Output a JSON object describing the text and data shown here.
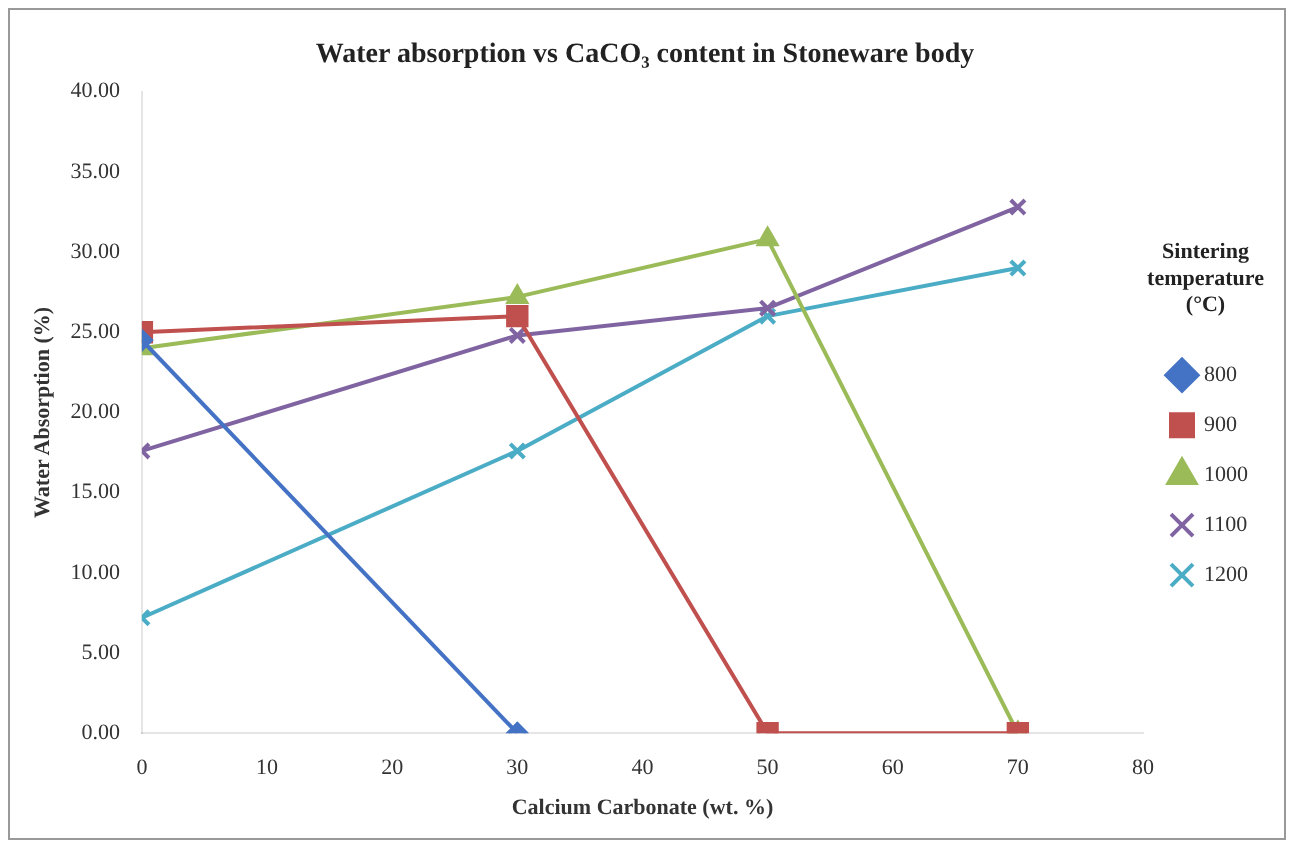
{
  "chart_data": {
    "type": "line",
    "title": "Water absorption vs CaCO₃ content in Stoneware body",
    "xlabel": "Calcium Carbonate (wt. %)",
    "ylabel": "Water Absorption (%)",
    "legend_title": "Sintering temperature (°C)",
    "legend": "right",
    "grid": false,
    "line_style": "solid",
    "x": [
      0,
      30,
      50,
      70
    ],
    "series": [
      {
        "name": "800",
        "color": "#4472c4",
        "marker": "diamond",
        "values": [
          24.5,
          0,
          null,
          null
        ]
      },
      {
        "name": "900",
        "color": "#c0504d",
        "marker": "square",
        "values": [
          25,
          26,
          0,
          0
        ]
      },
      {
        "name": "1000",
        "color": "#9bbb59",
        "marker": "triangle",
        "values": [
          24,
          27.2,
          30.8,
          0
        ]
      },
      {
        "name": "1100",
        "color": "#8064a2",
        "marker": "cross",
        "values": [
          17.6,
          24.8,
          26.5,
          32.8
        ]
      },
      {
        "name": "1200",
        "color": "#4bacc6",
        "marker": "cross",
        "values": [
          7.2,
          17.6,
          26,
          29
        ]
      }
    ],
    "xlim": [
      0,
      80
    ],
    "xticks": [
      0,
      10,
      20,
      30,
      40,
      50,
      60,
      70,
      80
    ],
    "ylim": [
      0,
      40
    ],
    "yticks": [
      {
        "value": 0,
        "label": "0.00"
      },
      {
        "value": 5,
        "label": "5.00"
      },
      {
        "value": 10,
        "label": "10.00"
      },
      {
        "value": 15,
        "label": "15.00"
      },
      {
        "value": 20,
        "label": "20.00"
      },
      {
        "value": 25,
        "label": "25.00"
      },
      {
        "value": 30,
        "label": "30.00"
      },
      {
        "value": 35,
        "label": "35.00"
      },
      {
        "value": 40,
        "label": "40.00"
      }
    ]
  }
}
